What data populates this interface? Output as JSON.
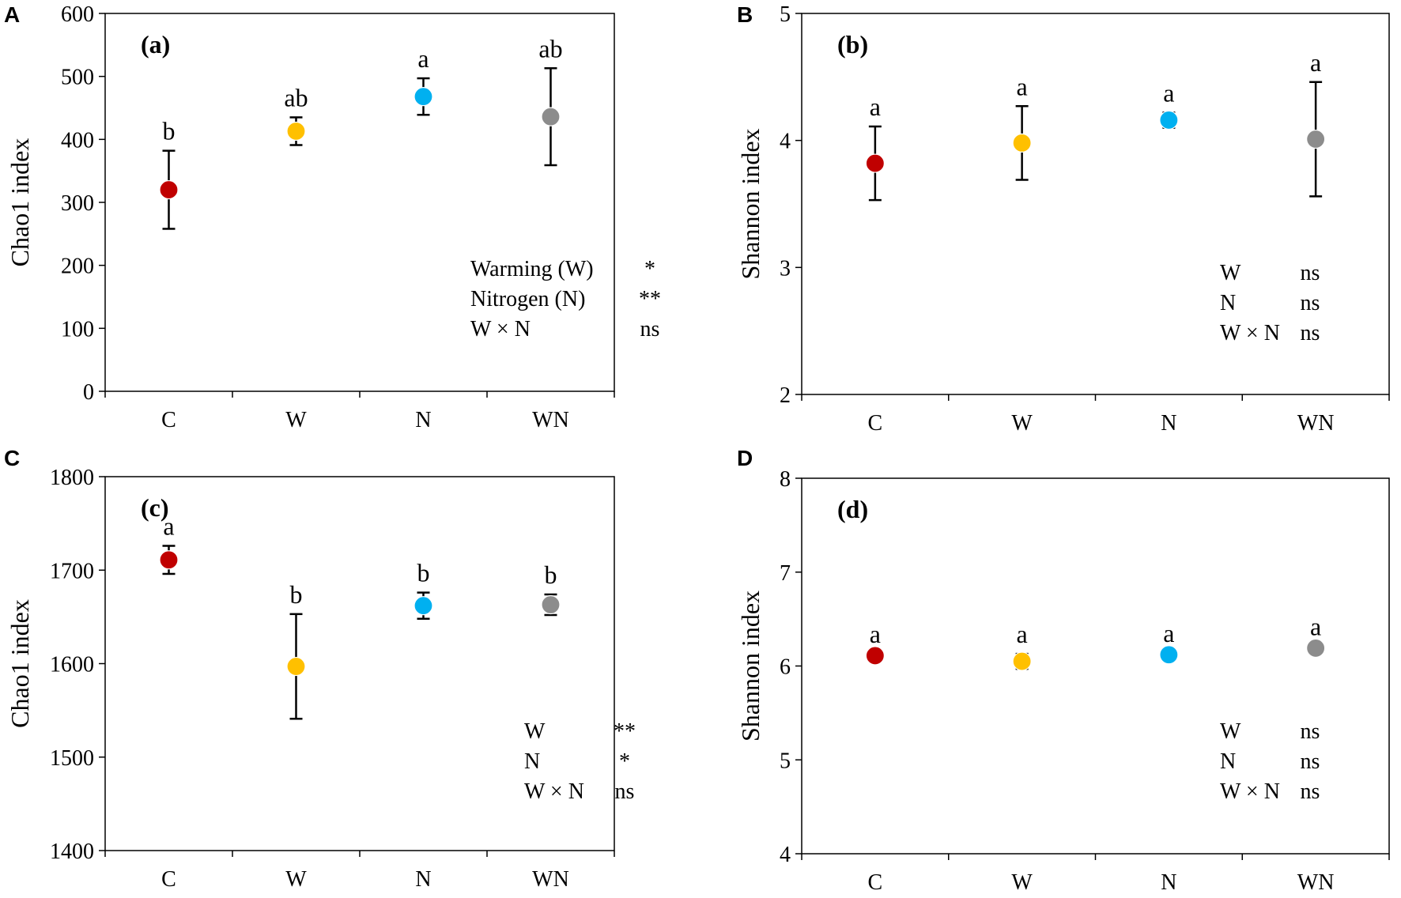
{
  "colors": {
    "C": "#c00000",
    "W": "#ffc000",
    "N": "#00b0f0",
    "WN": "#8c8c8c"
  },
  "chart_data": [
    {
      "type": "scatter",
      "panel_letter": "A",
      "panel_tag": "(a)",
      "ylabel": "Chao1 index",
      "ylim": [
        0,
        600
      ],
      "yticks": [
        0,
        100,
        200,
        300,
        400,
        500,
        600
      ],
      "categories": [
        "C",
        "W",
        "N",
        "WN"
      ],
      "values": [
        320,
        413,
        468,
        436
      ],
      "errors": [
        62,
        22,
        29,
        77
      ],
      "sig_letters": [
        "b",
        "ab",
        "a",
        "ab"
      ],
      "stats": [
        {
          "term": "Warming (W)",
          "sig": "*"
        },
        {
          "term": "Nitrogen (N)",
          "sig": "**"
        },
        {
          "term": "W × N",
          "sig": "ns"
        }
      ]
    },
    {
      "type": "scatter",
      "panel_letter": "B",
      "panel_tag": "(b)",
      "ylabel": "Shannon index",
      "ylim": [
        2,
        5
      ],
      "yticks": [
        2,
        3,
        4,
        5
      ],
      "categories": [
        "C",
        "W",
        "N",
        "WN"
      ],
      "values": [
        3.82,
        3.98,
        4.16,
        4.01
      ],
      "errors": [
        0.29,
        0.29,
        0.06,
        0.45
      ],
      "sig_letters": [
        "a",
        "a",
        "a",
        "a"
      ],
      "stats": [
        {
          "term": "W",
          "sig": "ns"
        },
        {
          "term": "N",
          "sig": "ns"
        },
        {
          "term": "W × N",
          "sig": "ns"
        }
      ]
    },
    {
      "type": "scatter",
      "panel_letter": "C",
      "panel_tag": "(c)",
      "ylabel": "Chao1 index",
      "ylim": [
        1400,
        1800
      ],
      "yticks": [
        1400,
        1500,
        1600,
        1700,
        1800
      ],
      "categories": [
        "C",
        "W",
        "N",
        "WN"
      ],
      "values": [
        1711,
        1597,
        1662,
        1663
      ],
      "errors": [
        15,
        56,
        14,
        11
      ],
      "sig_letters": [
        "a",
        "b",
        "b",
        "b"
      ],
      "stats": [
        {
          "term": "W",
          "sig": "**"
        },
        {
          "term": "N",
          "sig": "*"
        },
        {
          "term": "W × N",
          "sig": "ns"
        }
      ]
    },
    {
      "type": "scatter",
      "panel_letter": "D",
      "panel_tag": "(d)",
      "ylabel": "Shannon index",
      "ylim": [
        4,
        8
      ],
      "yticks": [
        4,
        5,
        6,
        7,
        8
      ],
      "categories": [
        "C",
        "W",
        "N",
        "WN"
      ],
      "values": [
        6.11,
        6.05,
        6.12,
        6.19
      ],
      "errors": [
        0.02,
        0.08,
        0.02,
        0.02
      ],
      "sig_letters": [
        "a",
        "a",
        "a",
        "a"
      ],
      "stats": [
        {
          "term": "W",
          "sig": "ns"
        },
        {
          "term": "N",
          "sig": "ns"
        },
        {
          "term": "W × N",
          "sig": "ns"
        }
      ]
    }
  ]
}
